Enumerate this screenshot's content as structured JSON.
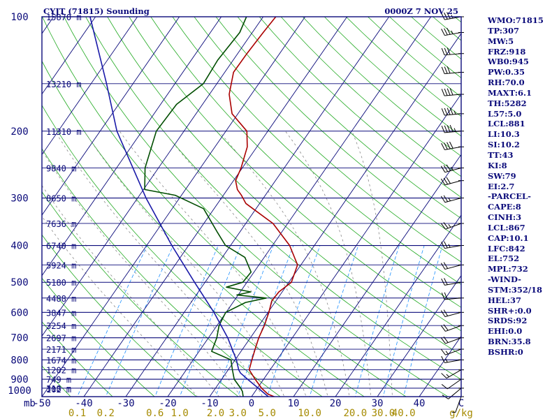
{
  "header": {
    "station": "CYJT (71815) Sounding",
    "time": "0000Z  7 NOV 25"
  },
  "colors": {
    "frame": "#0a0a7a",
    "isobar": "#0a0a7a",
    "isotherm": "#0a0a7a",
    "dry_adiabat": "#22aa22",
    "moist_adiabat": "#888888",
    "mixing_ratio": "#1e90ff",
    "temperature": "#aa0000",
    "dewpoint": "#004d00",
    "parcel": "#1a1aa8",
    "wind": "#000000",
    "text": "#0a0a7a",
    "mixing_label": "#a58a00"
  },
  "chart_data": {
    "type": "line",
    "title": "CYJT (71815) Sounding",
    "subtitle": "0000Z  7 NOV 25",
    "xlabel": "C",
    "ylabel": "mb",
    "xlim": [
      -50,
      50
    ],
    "ylim": [
      1000,
      100
    ],
    "x_ticks": [
      "-50",
      "-40",
      "-30",
      "-20",
      "-10",
      "0",
      "10",
      "20",
      "30",
      "40"
    ],
    "x_unit": "C",
    "pressure_ticks": [
      "100",
      "200",
      "300",
      "400",
      "500",
      "600",
      "700",
      "800",
      "900",
      "1000"
    ],
    "pressure_unit": "mb",
    "height_labels": [
      {
        "p": 100,
        "label": "15870 m"
      },
      {
        "p": 150,
        "label": "13210 m"
      },
      {
        "p": 200,
        "label": "11310 m"
      },
      {
        "p": 250,
        "label": "9840 m"
      },
      {
        "p": 300,
        "label": "8650 m"
      },
      {
        "p": 350,
        "label": "7636 m"
      },
      {
        "p": 400,
        "label": "6740 m"
      },
      {
        "p": 450,
        "label": "5924 m"
      },
      {
        "p": 500,
        "label": "5180 m"
      },
      {
        "p": 550,
        "label": "4488 m"
      },
      {
        "p": 600,
        "label": "3847 m"
      },
      {
        "p": 650,
        "label": "3254 m"
      },
      {
        "p": 700,
        "label": "2697 m"
      },
      {
        "p": 750,
        "label": "2171 m"
      },
      {
        "p": 800,
        "label": "1674 m"
      },
      {
        "p": 850,
        "label": "1202 m"
      },
      {
        "p": 900,
        "label": "749 m"
      },
      {
        "p": 950,
        "label": "318 m"
      },
      {
        "p": 1000,
        "label": "102 m"
      }
    ],
    "mixing_ratio_labels": [
      "0.1",
      "0.2",
      "0.6",
      "1.0",
      "2.0",
      "3.0",
      "5.0",
      "10.0",
      "20.0",
      "30.0",
      "40.0",
      "g/kg"
    ],
    "mixing_ratio_values": [
      0.1,
      0.2,
      0.6,
      1.0,
      2.0,
      3.0,
      5.0,
      10.0,
      20.0,
      30.0,
      40.0
    ],
    "series": [
      {
        "name": "Temperature",
        "p": [
          1005,
          985,
          950,
          900,
          850,
          800,
          750,
          700,
          650,
          600,
          560,
          530,
          500,
          450,
          400,
          350,
          310,
          295,
          285,
          270,
          250,
          220,
          200,
          180,
          160,
          140,
          125,
          110,
          100
        ],
        "t": [
          6.0,
          3.5,
          1.0,
          -2.0,
          -5.0,
          -6.0,
          -7.0,
          -8.0,
          -8.7,
          -9.8,
          -11.0,
          -10.8,
          -9.4,
          -10.8,
          -15.9,
          -23.5,
          -33.3,
          -35.7,
          -37.6,
          -39.5,
          -40.3,
          -42.3,
          -45.0,
          -51.4,
          -55.3,
          -57.9,
          -57.8,
          -57.4,
          -57.0
        ]
      },
      {
        "name": "Dewpoint",
        "p": [
          1000,
          970,
          950,
          900,
          850,
          800,
          760,
          700,
          650,
          600,
          565,
          550,
          540,
          530,
          515,
          500,
          470,
          430,
          400,
          370,
          320,
          295,
          285,
          250,
          200,
          170,
          150,
          130,
          110,
          100
        ],
        "t": [
          -2.0,
          -3.0,
          -4.0,
          -7.0,
          -9.0,
          -11.0,
          -17.0,
          -18.0,
          -19.5,
          -20.1,
          -17.0,
          -12.8,
          -20.3,
          -17.5,
          -24.1,
          -21.0,
          -20.7,
          -24.6,
          -31.2,
          -35.2,
          -42.5,
          -51.5,
          -59.7,
          -63.2,
          -66.6,
          -66.2,
          -63.2,
          -63.7,
          -63.0,
          -64.0
        ]
      },
      {
        "name": "Parcel",
        "p": [
          1000,
          950,
          900,
          867,
          850,
          800,
          700,
          600,
          500,
          400,
          300,
          200,
          150,
          100
        ],
        "t": [
          4.0,
          0.2,
          -3.8,
          -6.5,
          -7.5,
          -9.7,
          -15.4,
          -22.9,
          -32.5,
          -44.0,
          -58.0,
          -76.0,
          -86.3,
          -101.3
        ]
      }
    ],
    "wind_barbs": [
      {
        "p": 100,
        "dir": 260,
        "spd": 35
      },
      {
        "p": 110,
        "dir": 260,
        "spd": 35
      },
      {
        "p": 125,
        "dir": 265,
        "spd": 30
      },
      {
        "p": 140,
        "dir": 265,
        "spd": 30
      },
      {
        "p": 160,
        "dir": 265,
        "spd": 40
      },
      {
        "p": 180,
        "dir": 265,
        "spd": 45
      },
      {
        "p": 200,
        "dir": 265,
        "spd": 45
      },
      {
        "p": 220,
        "dir": 260,
        "spd": 40
      },
      {
        "p": 250,
        "dir": 255,
        "spd": 35
      },
      {
        "p": 270,
        "dir": 255,
        "spd": 30
      },
      {
        "p": 300,
        "dir": 255,
        "spd": 25
      },
      {
        "p": 350,
        "dir": 250,
        "spd": 25
      },
      {
        "p": 400,
        "dir": 260,
        "spd": 25
      },
      {
        "p": 450,
        "dir": 255,
        "spd": 20
      },
      {
        "p": 500,
        "dir": 260,
        "spd": 20
      },
      {
        "p": 550,
        "dir": 265,
        "spd": 20
      },
      {
        "p": 600,
        "dir": 255,
        "spd": 20
      },
      {
        "p": 650,
        "dir": 250,
        "spd": 20
      },
      {
        "p": 700,
        "dir": 250,
        "spd": 20
      },
      {
        "p": 750,
        "dir": 250,
        "spd": 15
      },
      {
        "p": 800,
        "dir": 260,
        "spd": 15
      },
      {
        "p": 850,
        "dir": 240,
        "spd": 15
      },
      {
        "p": 900,
        "dir": 235,
        "spd": 10
      },
      {
        "p": 950,
        "dir": 230,
        "spd": 10
      },
      {
        "p": 1000,
        "dir": 200,
        "spd": 5
      }
    ]
  },
  "indices": [
    "WMO:71815",
    "TP:307",
    "MW:5",
    "FRZ:918",
    "WB0:945",
    "PW:0.35",
    "RH:70.0",
    "MAXT:6.1",
    "TH:5282",
    "L57:5.0",
    "LCL:881",
    "LI:10.3",
    "SI:10.2",
    "TT:43",
    "KI:8",
    "SW:79",
    "EI:2.7",
    "-PARCEL-",
    "CAPE:8",
    "CINH:3",
    "LCL:867",
    "CAP:10.1",
    "LFC:842",
    "EL:752",
    "MPL:732",
    "-WIND-",
    "STM:352/18",
    "HEL:37",
    "SHR+:0.0",
    "SRDS:92",
    "EHI:0.0",
    "BRN:35.8",
    "BSHR:0"
  ]
}
